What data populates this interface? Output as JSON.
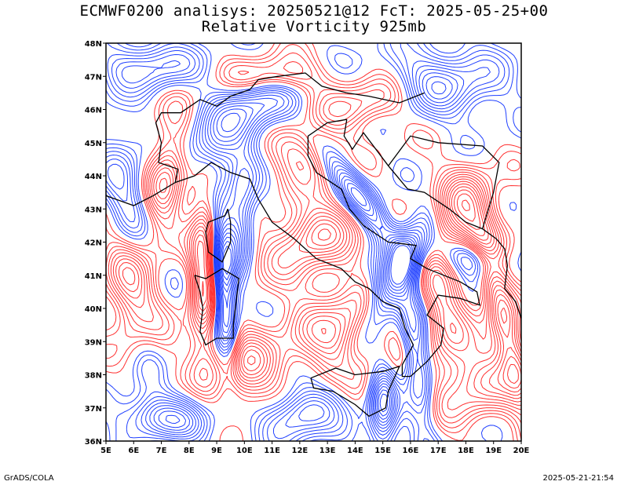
{
  "title_line1": "ECMWF0200 analisys: 20250521@12 FcT: 2025-05-25+00",
  "title_line2": "Relative Vorticity 925mb",
  "map": {
    "lon_range": [
      5,
      20
    ],
    "lat_range": [
      36,
      48
    ],
    "x_tick_labels": [
      "5E",
      "6E",
      "7E",
      "8E",
      "9E",
      "10E",
      "11E",
      "12E",
      "13E",
      "14E",
      "15E",
      "16E",
      "17E",
      "18E",
      "19E",
      "20E"
    ],
    "y_tick_labels": [
      "36N",
      "37N",
      "38N",
      "39N",
      "40N",
      "41N",
      "42N",
      "43N",
      "44N",
      "45N",
      "46N",
      "47N",
      "48N"
    ],
    "positive_color": "#ff3030",
    "negative_color": "#2040ff",
    "background_color": "#ffffff",
    "coastline_color": "#000000"
  },
  "footer": {
    "credit": "GrADS/COLA",
    "timestamp": "2025-05-21-21:54"
  }
}
